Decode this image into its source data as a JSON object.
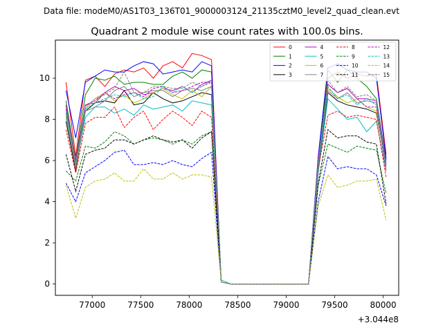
{
  "figure": {
    "suptitle": "Data file: modeM0/AS1T03_136T01_9000003124_21135cztM0_level2_quad_clean.evt",
    "offset_text": "+3.044e8"
  },
  "chart_data": {
    "type": "line",
    "title": "Quadrant 2 module wise count rates with 100.0s bins.",
    "xlabel": "",
    "ylabel": "",
    "x_offset": 304400000,
    "xlim": [
      76620,
      80160
    ],
    "ylim": [
      -0.55,
      11.85
    ],
    "xticks": [
      77000,
      77500,
      78000,
      78500,
      79000,
      79500,
      80000
    ],
    "xtick_labels": [
      "77000",
      "77500",
      "78000",
      "78500",
      "79000",
      "79500",
      "80000"
    ],
    "yticks": [
      0,
      2,
      4,
      6,
      8,
      10
    ],
    "ytick_labels": [
      "0",
      "2",
      "4",
      "6",
      "8",
      "10"
    ],
    "grid": false,
    "legend_location": "top-right",
    "legend_columns": 4,
    "x": [
      76730,
      76830,
      76930,
      77030,
      77130,
      77230,
      77330,
      77430,
      77530,
      77630,
      77730,
      77830,
      77930,
      78030,
      78130,
      78230,
      78330,
      78430,
      78530,
      78630,
      78730,
      78830,
      78930,
      79030,
      79130,
      79230,
      79330,
      79430,
      79530,
      79630,
      79730,
      79830,
      79930,
      80030
    ],
    "series": [
      {
        "name": "0",
        "color": "#ff0000",
        "dash": "solid",
        "values": [
          9.8,
          6.2,
          9.9,
          10.1,
          9.6,
          10.2,
          10.4,
          10.3,
          10.5,
          10.0,
          10.6,
          10.8,
          10.5,
          11.2,
          11.1,
          10.9,
          0.1,
          0.0,
          0.0,
          0.0,
          0.0,
          0.0,
          0.0,
          0.0,
          0.0,
          0.0,
          6.0,
          10.0,
          10.3,
          10.0,
          10.2,
          10.1,
          10.2,
          6.3
        ]
      },
      {
        "name": "1",
        "color": "#008000",
        "dash": "solid",
        "values": [
          8.9,
          6.0,
          9.2,
          10.0,
          9.9,
          10.1,
          9.7,
          9.8,
          9.8,
          9.7,
          9.7,
          10.1,
          10.3,
          10.0,
          10.4,
          10.3,
          0.1,
          0.0,
          0.0,
          0.0,
          0.0,
          0.0,
          0.0,
          0.0,
          0.0,
          0.0,
          5.8,
          10.4,
          9.8,
          10.4,
          10.0,
          9.6,
          9.0,
          6.0
        ]
      },
      {
        "name": "2",
        "color": "#0000ff",
        "dash": "solid",
        "values": [
          9.4,
          7.1,
          9.8,
          10.1,
          10.4,
          10.3,
          10.3,
          10.6,
          10.8,
          10.7,
          10.2,
          10.3,
          10.4,
          10.3,
          10.8,
          10.6,
          0.1,
          0.0,
          0.0,
          0.0,
          0.0,
          0.0,
          0.0,
          0.0,
          0.0,
          0.0,
          6.2,
          10.5,
          10.7,
          10.4,
          10.3,
          10.3,
          10.0,
          6.1
        ]
      },
      {
        "name": "3",
        "color": "#000000",
        "dash": "solid",
        "values": [
          7.9,
          5.5,
          8.4,
          8.8,
          8.9,
          8.8,
          9.4,
          8.7,
          8.8,
          9.3,
          9.0,
          8.8,
          8.9,
          9.1,
          9.3,
          9.2,
          0.1,
          0.0,
          0.0,
          0.0,
          0.0,
          0.0,
          0.0,
          0.0,
          0.0,
          0.0,
          5.5,
          9.3,
          8.9,
          8.7,
          8.6,
          8.5,
          8.3,
          5.8
        ]
      },
      {
        "name": "4",
        "color": "#bf00bf",
        "dash": "solid",
        "values": [
          8.7,
          5.9,
          8.7,
          8.8,
          9.3,
          9.6,
          9.4,
          9.5,
          9.2,
          9.3,
          9.5,
          9.4,
          9.6,
          9.3,
          9.7,
          9.9,
          0.1,
          0.0,
          0.0,
          0.0,
          0.0,
          0.0,
          0.0,
          0.0,
          0.0,
          0.0,
          5.6,
          9.7,
          9.3,
          9.5,
          9.0,
          9.0,
          8.9,
          5.9
        ]
      },
      {
        "name": "5",
        "color": "#00bfbf",
        "dash": "solid",
        "values": [
          8.1,
          5.7,
          8.1,
          8.6,
          8.6,
          8.3,
          8.5,
          8.2,
          8.7,
          8.5,
          8.6,
          8.7,
          8.4,
          8.9,
          8.8,
          8.7,
          0.2,
          0.0,
          0.0,
          0.0,
          0.0,
          0.0,
          0.0,
          0.0,
          0.0,
          0.0,
          5.4,
          9.0,
          8.5,
          8.0,
          8.1,
          7.4,
          7.9,
          5.5
        ]
      },
      {
        "name": "6",
        "color": "#bfbf00",
        "dash": "solid",
        "values": [
          8.2,
          5.8,
          8.5,
          9.0,
          9.3,
          8.9,
          9.2,
          8.8,
          9.0,
          9.3,
          9.5,
          9.2,
          9.0,
          9.4,
          9.1,
          9.6,
          0.1,
          0.0,
          0.0,
          0.0,
          0.0,
          0.0,
          0.0,
          0.0,
          0.0,
          0.0,
          5.9,
          9.5,
          9.1,
          8.8,
          9.0,
          8.6,
          8.4,
          5.7
        ]
      },
      {
        "name": "7",
        "color": "#808080",
        "dash": "solid",
        "values": [
          8.3,
          5.6,
          8.4,
          8.6,
          8.9,
          9.4,
          9.6,
          9.1,
          9.3,
          9.4,
          9.4,
          9.1,
          9.4,
          9.5,
          9.4,
          9.6,
          0.1,
          0.0,
          0.0,
          0.0,
          0.0,
          0.0,
          0.0,
          0.0,
          0.0,
          0.0,
          5.7,
          9.4,
          9.0,
          9.3,
          8.8,
          8.9,
          8.8,
          5.8
        ]
      },
      {
        "name": "8",
        "color": "#ff0000",
        "dash": "dashed",
        "values": [
          7.5,
          5.4,
          7.8,
          8.1,
          8.1,
          8.6,
          7.6,
          8.1,
          8.4,
          7.5,
          8.0,
          8.4,
          8.1,
          7.7,
          8.4,
          8.1,
          0.1,
          0.0,
          0.0,
          0.0,
          0.0,
          0.0,
          0.0,
          0.0,
          0.0,
          0.0,
          5.6,
          8.2,
          8.4,
          8.1,
          8.2,
          8.1,
          8.0,
          5.2
        ]
      },
      {
        "name": "9",
        "color": "#008000",
        "dash": "dashed",
        "values": [
          5.5,
          5.0,
          6.7,
          6.6,
          6.9,
          7.4,
          7.2,
          6.8,
          7.0,
          7.1,
          7.0,
          6.8,
          7.0,
          6.8,
          7.2,
          7.4,
          0.1,
          0.0,
          0.0,
          0.0,
          0.0,
          0.0,
          0.0,
          0.0,
          0.0,
          0.0,
          4.8,
          6.8,
          6.6,
          6.4,
          6.7,
          6.6,
          6.5,
          4.4
        ]
      },
      {
        "name": "10",
        "color": "#0000ff",
        "dash": "dashed",
        "values": [
          4.9,
          4.0,
          5.4,
          5.7,
          6.0,
          6.4,
          6.5,
          5.8,
          5.8,
          5.9,
          5.8,
          6.0,
          5.8,
          5.7,
          6.1,
          6.4,
          0.1,
          0.0,
          0.0,
          0.0,
          0.0,
          0.0,
          0.0,
          0.0,
          0.0,
          0.0,
          4.0,
          6.2,
          5.6,
          5.7,
          5.6,
          5.6,
          5.3,
          3.8
        ]
      },
      {
        "name": "11",
        "color": "#000000",
        "dash": "dashed",
        "values": [
          6.3,
          4.5,
          6.3,
          6.5,
          6.6,
          7.0,
          7.0,
          6.8,
          7.0,
          7.2,
          7.0,
          6.9,
          7.0,
          6.6,
          7.1,
          7.4,
          0.1,
          0.0,
          0.0,
          0.0,
          0.0,
          0.0,
          0.0,
          0.0,
          0.0,
          0.0,
          4.9,
          7.5,
          7.1,
          7.2,
          7.2,
          6.9,
          6.8,
          3.9
        ]
      },
      {
        "name": "12",
        "color": "#bf00bf",
        "dash": "dashed",
        "values": [
          8.5,
          6.0,
          8.7,
          8.9,
          9.3,
          9.0,
          9.2,
          9.3,
          9.1,
          9.5,
          9.6,
          9.3,
          9.4,
          9.6,
          9.8,
          9.8,
          0.1,
          0.0,
          0.0,
          0.0,
          0.0,
          0.0,
          0.0,
          0.0,
          0.0,
          0.0,
          6.1,
          9.7,
          9.3,
          9.5,
          9.0,
          8.6,
          8.6,
          5.5
        ]
      },
      {
        "name": "13",
        "color": "#00bfbf",
        "dash": "dashed",
        "values": [
          8.4,
          5.9,
          8.5,
          8.8,
          9.0,
          9.2,
          9.1,
          9.3,
          9.0,
          9.1,
          9.6,
          9.3,
          9.6,
          9.3,
          9.6,
          9.9,
          0.1,
          0.0,
          0.0,
          0.0,
          0.0,
          0.0,
          0.0,
          0.0,
          0.0,
          0.0,
          5.8,
          9.6,
          9.0,
          9.2,
          8.7,
          9.0,
          8.7,
          5.6
        ]
      },
      {
        "name": "14",
        "color": "#bfbf00",
        "dash": "dashed",
        "values": [
          4.8,
          3.2,
          4.7,
          5.0,
          5.1,
          5.4,
          5.0,
          5.0,
          5.6,
          5.1,
          5.1,
          5.4,
          5.1,
          5.3,
          5.3,
          5.2,
          0.1,
          0.0,
          0.0,
          0.0,
          0.0,
          0.0,
          0.0,
          0.0,
          0.0,
          0.0,
          3.8,
          5.3,
          4.7,
          4.8,
          5.0,
          5.0,
          5.1,
          3.1
        ]
      },
      {
        "name": "15",
        "color": "#808080",
        "dash": "dashed",
        "values": [
          8.6,
          5.8,
          8.6,
          9.0,
          9.2,
          9.5,
          10.3,
          9.3,
          9.3,
          9.6,
          9.6,
          9.5,
          9.5,
          9.8,
          9.6,
          9.8,
          0.1,
          0.0,
          0.0,
          0.0,
          0.0,
          0.0,
          0.0,
          0.0,
          0.0,
          0.0,
          5.9,
          9.9,
          9.3,
          9.6,
          9.1,
          9.2,
          8.9,
          5.7
        ]
      }
    ]
  }
}
